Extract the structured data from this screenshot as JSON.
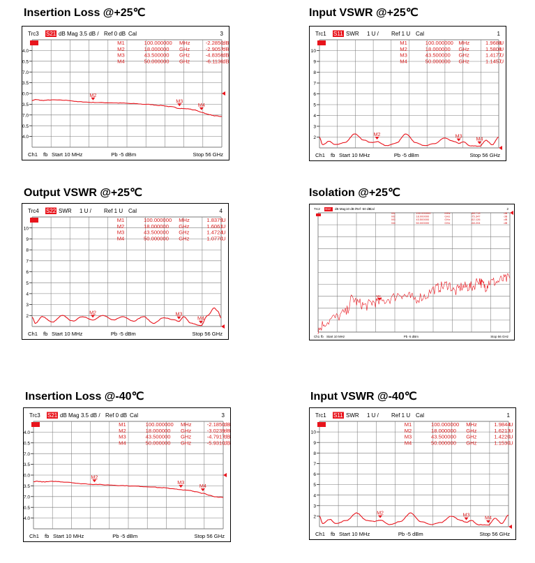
{
  "figures": [
    {
      "title": "Insertion Loss @+25℃",
      "header": {
        "trace": "Trc3",
        "param": "S21",
        "format": "dB Mag",
        "scale": "3.5 dB /",
        "ref": "Ref 0 dB",
        "cal": "Cal",
        "index": "3"
      },
      "markers": [
        {
          "name": "M1",
          "freq": "100.000000",
          "unit": "MHz",
          "value": "-2.2850",
          "vunit": "dB"
        },
        {
          "name": "M2",
          "freq": "18.000000",
          "unit": "GHz",
          "value": "-2.9057",
          "vunit": "dB"
        },
        {
          "name": "M3",
          "freq": "43.500000",
          "unit": "GHz",
          "value": "-4.8356",
          "vunit": "dB"
        },
        {
          "name": "M4",
          "freq": "50.000000",
          "unit": "GHz",
          "value": "-6.1136",
          "vunit": "dB"
        }
      ],
      "footer": {
        "channel": "Ch1",
        "fb": "fb",
        "start": "Start  10 MHz",
        "power": "Pb  -5 dBm",
        "stop": "Stop  56 GHz"
      }
    },
    {
      "title": "Input VSWR @+25℃",
      "header": {
        "trace": "Trc1",
        "param": "S11",
        "format": "SWR",
        "scale": "1 U /",
        "ref": "Ref 1 U",
        "cal": "Cal",
        "index": "1"
      },
      "markers": [
        {
          "name": "M1",
          "freq": "100.000000",
          "unit": "MHz",
          "value": "1.9688",
          "vunit": "U"
        },
        {
          "name": "M2",
          "freq": "18.000000",
          "unit": "GHz",
          "value": "1.5808",
          "vunit": "U"
        },
        {
          "name": "M3",
          "freq": "43.500000",
          "unit": "GHz",
          "value": "1.4177",
          "vunit": "U"
        },
        {
          "name": "M4",
          "freq": "50.000000",
          "unit": "GHz",
          "value": "1.1457",
          "vunit": "U"
        }
      ],
      "footer": {
        "channel": "Ch1",
        "fb": "fb",
        "start": "Start  10 MHz",
        "power": "Pb  -5 dBm",
        "stop": "Stop  56 GHz"
      }
    },
    {
      "title": "Output VSWR @+25℃",
      "header": {
        "trace": "Trc4",
        "param": "S22",
        "format": "SWR",
        "scale": "1 U /",
        "ref": "Ref 1 U",
        "cal": "Cal",
        "index": "4"
      },
      "markers": [
        {
          "name": "M1",
          "freq": "100.000000",
          "unit": "MHz",
          "value": "1.8379",
          "vunit": "U"
        },
        {
          "name": "M2",
          "freq": "18.000000",
          "unit": "GHz",
          "value": "1.6061",
          "vunit": "U"
        },
        {
          "name": "M3",
          "freq": "43.500000",
          "unit": "GHz",
          "value": "1.4724",
          "vunit": "U"
        },
        {
          "name": "M4",
          "freq": "50.000000",
          "unit": "GHz",
          "value": "1.0770",
          "vunit": "U"
        }
      ],
      "footer": {
        "channel": "Ch1",
        "fb": "fb",
        "start": "Start  10 MHz",
        "power": "Pb  -5 dBm",
        "stop": "Stop  56 GHz"
      }
    },
    {
      "title": "Isolation @+25℃",
      "header": {
        "trace": "Trc2",
        "param": "S12",
        "format": "dB Mag",
        "scale": "10 dB /",
        "ref": "Ref -50 dB",
        "cal": "Cal",
        "index": "2"
      },
      "markers": [
        {
          "name": "M1",
          "freq": "100.000000",
          "unit": "MHz",
          "value": "-88.713",
          "vunit": "dB"
        },
        {
          "name": "M2",
          "freq": "18.000000",
          "unit": "GHz",
          "value": "-75.347",
          "vunit": "dB"
        },
        {
          "name": "M3",
          "freq": "43.500000",
          "unit": "GHz",
          "value": "-62.126",
          "vunit": "dB"
        },
        {
          "name": "M4",
          "freq": "50.000000",
          "unit": "GHz",
          "value": "-58.204",
          "vunit": "dB"
        }
      ],
      "footer": {
        "channel": "Ch1",
        "fb": "fb",
        "start": "Start  10 MHz",
        "power": "Pb  -5 dBm",
        "stop": "Stop  56 GHz"
      }
    },
    {
      "title": "Insertion Loss @-40℃",
      "header": {
        "trace": "Trc3",
        "param": "S21",
        "format": "dB Mag",
        "scale": "3.5 dB /",
        "ref": "Ref 0 dB",
        "cal": "Cal",
        "index": "3"
      },
      "markers": [
        {
          "name": "M1",
          "freq": "100.000000",
          "unit": "MHz",
          "value": "-2.1850",
          "vunit": "dB"
        },
        {
          "name": "M2",
          "freq": "18.000000",
          "unit": "GHz",
          "value": "-3.0239",
          "vunit": "dB"
        },
        {
          "name": "M3",
          "freq": "43.500000",
          "unit": "GHz",
          "value": "-4.7917",
          "vunit": "dB"
        },
        {
          "name": "M4",
          "freq": "50.000000",
          "unit": "GHz",
          "value": "-5.9310",
          "vunit": "dB"
        }
      ],
      "footer": {
        "channel": "Ch1",
        "fb": "fb",
        "start": "Start  10 MHz",
        "power": "Pb  -5 dBm",
        "stop": "Stop  56 GHz"
      }
    },
    {
      "title": "Input VSWR @-40℃",
      "header": {
        "trace": "Trc1",
        "param": "S11",
        "format": "SWR",
        "scale": "1 U /",
        "ref": "Ref 1 U",
        "cal": "Cal",
        "index": "1"
      },
      "markers": [
        {
          "name": "M1",
          "freq": "100.000000",
          "unit": "MHz",
          "value": "1.9844",
          "vunit": "U"
        },
        {
          "name": "M2",
          "freq": "18.000000",
          "unit": "GHz",
          "value": "1.6213",
          "vunit": "U"
        },
        {
          "name": "M3",
          "freq": "43.500000",
          "unit": "GHz",
          "value": "1.4220",
          "vunit": "U"
        },
        {
          "name": "M4",
          "freq": "50.000000",
          "unit": "GHz",
          "value": "1.1530",
          "vunit": "U"
        }
      ],
      "footer": {
        "channel": "Ch1",
        "fb": "fb",
        "start": "Start  10 MHz",
        "power": "Pb  -5 dBm",
        "stop": "Stop  56 GHz"
      }
    }
  ],
  "colors": {
    "trace": "#e8141c",
    "grid": "#7a7a7a",
    "text": "#000000",
    "marker": "#d81e1e"
  },
  "chart_data": [
    {
      "type": "line",
      "title": "Insertion Loss @+25℃",
      "xlabel": "",
      "ylabel": "",
      "xlim": [
        0.01,
        56
      ],
      "ylim": [
        -17.5,
        17.5
      ],
      "yticks": [
        14,
        10.5,
        7,
        3.5,
        0,
        -3.5,
        -7,
        -10.5,
        -14
      ],
      "ytick_labels": [
        "14.0",
        "10.5",
        "7.0",
        "3.5",
        "0.0",
        "-3.5",
        "-7.0",
        "-10.5",
        "-14.0"
      ],
      "grid": true,
      "series": [
        {
          "x": [
            0.01,
            1,
            3,
            6,
            10,
            14,
            18,
            22,
            26,
            30,
            34,
            38,
            41,
            43.5,
            46,
            48,
            50,
            52,
            54,
            56
          ],
          "y": [
            -2.29,
            -2.0,
            -2.25,
            -2.1,
            -2.2,
            -2.7,
            -2.91,
            -3.0,
            -3.1,
            -3.3,
            -3.55,
            -3.9,
            -4.3,
            -4.84,
            -5.0,
            -5.4,
            -6.11,
            -6.8,
            -7.3,
            -7.5
          ]
        }
      ],
      "markers": [
        {
          "name": "M2",
          "x": 18,
          "y": -2.91
        },
        {
          "name": "M3",
          "x": 43.5,
          "y": -4.84
        },
        {
          "name": "M4",
          "x": 50,
          "y": -6.11
        }
      ]
    },
    {
      "type": "line",
      "title": "Input VSWR @+25℃",
      "xlabel": "",
      "ylabel": "",
      "xlim": [
        0.01,
        56
      ],
      "ylim": [
        1,
        11
      ],
      "yticks": [
        10,
        9,
        8,
        7,
        6,
        5,
        4,
        3,
        2
      ],
      "ytick_labels": [
        "10",
        "9",
        "8",
        "7",
        "6",
        "5",
        "4",
        "3",
        "2"
      ],
      "grid": true,
      "series": [
        {
          "x": [
            0.01,
            1,
            3,
            5,
            8,
            11,
            14,
            16,
            18,
            21,
            24,
            27,
            30,
            33,
            36,
            39,
            42,
            43.5,
            45,
            47,
            50,
            52,
            54,
            56
          ],
          "y": [
            1.97,
            1.3,
            1.6,
            1.3,
            1.5,
            2.3,
            1.7,
            1.5,
            1.58,
            1.2,
            1.45,
            2.3,
            1.5,
            1.2,
            1.4,
            1.9,
            1.6,
            1.42,
            1.55,
            1.2,
            1.15,
            1.7,
            1.3,
            2.0
          ]
        }
      ],
      "markers": [
        {
          "name": "M2",
          "x": 18,
          "y": 1.58
        },
        {
          "name": "M3",
          "x": 43.5,
          "y": 1.42
        },
        {
          "name": "M4",
          "x": 50,
          "y": 1.15
        }
      ]
    },
    {
      "type": "line",
      "title": "Output VSWR @+25℃",
      "xlabel": "",
      "ylabel": "",
      "xlim": [
        0.01,
        56
      ],
      "ylim": [
        1,
        11
      ],
      "yticks": [
        10,
        9,
        8,
        7,
        6,
        5,
        4,
        3,
        2
      ],
      "ytick_labels": [
        "10",
        "9",
        "8",
        "7",
        "6",
        "5",
        "4",
        "3",
        "2"
      ],
      "grid": true,
      "series": [
        {
          "x": [
            0.01,
            1,
            3,
            6,
            9,
            12,
            15,
            18,
            21,
            24,
            27,
            30,
            33,
            36,
            39,
            42,
            43.5,
            45,
            47,
            50,
            52,
            54,
            55,
            56
          ],
          "y": [
            1.84,
            1.3,
            1.9,
            1.4,
            2.0,
            1.5,
            1.9,
            1.61,
            2.0,
            1.6,
            1.9,
            1.5,
            1.9,
            1.3,
            1.8,
            1.6,
            1.47,
            1.9,
            1.3,
            1.08,
            2.0,
            2.7,
            2.4,
            1.8
          ]
        }
      ],
      "markers": [
        {
          "name": "M2",
          "x": 18,
          "y": 1.61
        },
        {
          "name": "M3",
          "x": 43.5,
          "y": 1.47
        },
        {
          "name": "M4",
          "x": 50,
          "y": 1.08
        }
      ]
    },
    {
      "type": "line",
      "title": "Isolation @+25℃",
      "xlabel": "",
      "ylabel": "",
      "xlim": [
        0.01,
        56
      ],
      "ylim": [
        -100,
        0
      ],
      "grid": true,
      "series": [
        {
          "x": [
            0.01,
            2,
            5,
            8,
            10,
            12,
            14,
            16,
            18,
            21,
            24,
            26,
            28,
            31,
            34,
            36,
            38,
            40,
            42,
            43.5,
            45,
            47,
            48,
            49,
            50,
            52,
            54,
            56
          ],
          "y": [
            -98,
            -92,
            -88,
            -84,
            -72,
            -76,
            -78,
            -75,
            -75,
            -72,
            -68,
            -70,
            -72,
            -70,
            -64,
            -62,
            -60,
            -66,
            -62,
            -62,
            -62,
            -56,
            -60,
            -62,
            -58,
            -58,
            -56,
            -55
          ]
        }
      ],
      "markers": [
        {
          "name": "M2",
          "x": 18,
          "y": -75.35
        }
      ]
    },
    {
      "type": "line",
      "title": "Insertion Loss @-40℃",
      "xlabel": "",
      "ylabel": "",
      "xlim": [
        0.01,
        56
      ],
      "ylim": [
        -17.5,
        17.5
      ],
      "yticks": [
        14,
        10.5,
        7,
        3.5,
        0,
        -3.5,
        -7,
        -10.5,
        -14
      ],
      "ytick_labels": [
        "14.0",
        "10.5",
        "7.0",
        "3.5",
        "0.0",
        "-3.5",
        "-7.0",
        "-10.5",
        "-14.0"
      ],
      "grid": true,
      "series": [
        {
          "x": [
            0.01,
            1,
            3,
            6,
            10,
            14,
            18,
            22,
            26,
            30,
            34,
            38,
            41,
            43.5,
            46,
            48,
            50,
            52,
            54,
            56
          ],
          "y": [
            -2.19,
            -2.0,
            -2.2,
            -2.05,
            -2.3,
            -2.8,
            -3.02,
            -3.2,
            -3.4,
            -3.6,
            -3.8,
            -4.1,
            -4.4,
            -4.79,
            -5.0,
            -5.4,
            -5.93,
            -6.6,
            -7.1,
            -7.3
          ]
        }
      ],
      "markers": [
        {
          "name": "M2",
          "x": 18,
          "y": -3.02
        },
        {
          "name": "M3",
          "x": 43.5,
          "y": -4.79
        },
        {
          "name": "M4",
          "x": 50,
          "y": -5.93
        }
      ]
    },
    {
      "type": "line",
      "title": "Input VSWR @-40℃",
      "xlabel": "",
      "ylabel": "",
      "xlim": [
        0.01,
        56
      ],
      "ylim": [
        1,
        11
      ],
      "yticks": [
        10,
        9,
        8,
        7,
        6,
        5,
        4,
        3,
        2
      ],
      "ytick_labels": [
        "10",
        "9",
        "8",
        "7",
        "6",
        "5",
        "4",
        "3",
        "2"
      ],
      "grid": true,
      "series": [
        {
          "x": [
            0.01,
            1,
            3,
            5,
            8,
            11,
            14,
            16,
            18,
            21,
            24,
            27,
            30,
            33,
            36,
            39,
            42,
            43.5,
            45,
            47,
            50,
            52,
            54,
            56
          ],
          "y": [
            1.98,
            1.3,
            1.7,
            1.3,
            1.6,
            2.3,
            1.6,
            1.5,
            1.62,
            1.2,
            1.5,
            2.3,
            1.5,
            1.2,
            1.4,
            2.0,
            1.6,
            1.42,
            1.6,
            1.2,
            1.15,
            1.8,
            1.3,
            2.1
          ]
        }
      ],
      "markers": [
        {
          "name": "M2",
          "x": 18,
          "y": 1.62
        },
        {
          "name": "M3",
          "x": 43.5,
          "y": 1.42
        },
        {
          "name": "M4",
          "x": 50,
          "y": 1.15
        }
      ]
    }
  ]
}
